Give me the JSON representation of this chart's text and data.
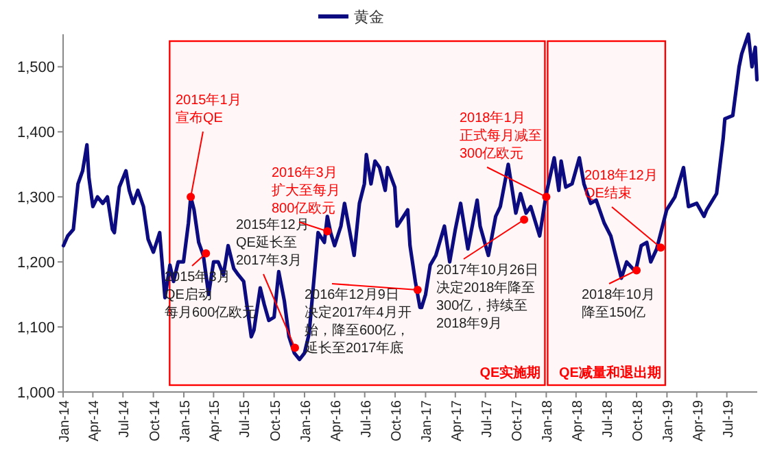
{
  "chart_data": {
    "type": "line",
    "legend": "top",
    "grid": false,
    "marker": "none",
    "line_style": "solid",
    "series": [
      {
        "name": "黄金",
        "color": "#0c0c80",
        "x": [
          "2014-01-02",
          "2014-01-15",
          "2014-02-01",
          "2014-02-15",
          "2014-03-01",
          "2014-03-14",
          "2014-03-20",
          "2014-04-01",
          "2014-04-15",
          "2014-05-01",
          "2014-05-15",
          "2014-05-30",
          "2014-06-05",
          "2014-06-20",
          "2014-07-10",
          "2014-07-20",
          "2014-08-01",
          "2014-08-15",
          "2014-09-01",
          "2014-09-15",
          "2014-10-01",
          "2014-10-20",
          "2014-11-05",
          "2014-11-20",
          "2014-12-01",
          "2014-12-15",
          "2014-12-31",
          "2015-01-15",
          "2015-01-22",
          "2015-02-01",
          "2015-02-15",
          "2015-03-01",
          "2015-03-17",
          "2015-04-01",
          "2015-04-15",
          "2015-05-01",
          "2015-05-15",
          "2015-06-01",
          "2015-06-15",
          "2015-07-01",
          "2015-07-24",
          "2015-08-01",
          "2015-08-20",
          "2015-09-01",
          "2015-09-15",
          "2015-10-01",
          "2015-10-15",
          "2015-11-01",
          "2015-11-15",
          "2015-12-01",
          "2015-12-17",
          "2016-01-01",
          "2016-01-15",
          "2016-02-11",
          "2016-03-01",
          "2016-03-10",
          "2016-03-20",
          "2016-04-01",
          "2016-04-20",
          "2016-05-01",
          "2016-05-30",
          "2016-06-15",
          "2016-06-30",
          "2016-07-06",
          "2016-07-20",
          "2016-08-01",
          "2016-08-15",
          "2016-09-01",
          "2016-09-08",
          "2016-09-30",
          "2016-10-07",
          "2016-10-20",
          "2016-11-08",
          "2016-11-15",
          "2016-12-01",
          "2016-12-15",
          "2016-12-20",
          "2017-01-01",
          "2017-01-15",
          "2017-02-01",
          "2017-02-27",
          "2017-03-15",
          "2017-04-01",
          "2017-04-17",
          "2017-05-09",
          "2017-06-06",
          "2017-06-15",
          "2017-07-10",
          "2017-08-01",
          "2017-08-15",
          "2017-09-08",
          "2017-10-01",
          "2017-10-15",
          "2017-11-01",
          "2017-11-15",
          "2017-12-12",
          "2018-01-01",
          "2018-01-25",
          "2018-02-08",
          "2018-02-15",
          "2018-03-01",
          "2018-03-20",
          "2018-04-11",
          "2018-04-25",
          "2018-05-15",
          "2018-06-01",
          "2018-06-25",
          "2018-07-15",
          "2018-08-16",
          "2018-09-01",
          "2018-09-28",
          "2018-10-15",
          "2018-11-01",
          "2018-11-13",
          "2018-12-01",
          "2018-12-31",
          "2019-01-25",
          "2019-02-20",
          "2019-03-07",
          "2019-04-01",
          "2019-04-23",
          "2019-05-01",
          "2019-05-31",
          "2019-06-20",
          "2019-06-25",
          "2019-07-19",
          "2019-08-07",
          "2019-08-15",
          "2019-09-04",
          "2019-09-15",
          "2019-09-25",
          "2019-09-30"
        ],
        "values": [
          1225,
          1240,
          1250,
          1320,
          1340,
          1380,
          1330,
          1285,
          1300,
          1290,
          1300,
          1250,
          1245,
          1315,
          1340,
          1310,
          1290,
          1310,
          1285,
          1235,
          1215,
          1245,
          1145,
          1195,
          1170,
          1200,
          1200,
          1260,
          1300,
          1280,
          1230,
          1210,
          1150,
          1200,
          1200,
          1180,
          1225,
          1190,
          1180,
          1170,
          1085,
          1095,
          1160,
          1135,
          1110,
          1115,
          1185,
          1140,
          1085,
          1060,
          1050,
          1060,
          1090,
          1245,
          1230,
          1270,
          1245,
          1225,
          1255,
          1290,
          1210,
          1290,
          1320,
          1365,
          1320,
          1355,
          1345,
          1310,
          1345,
          1315,
          1255,
          1265,
          1280,
          1225,
          1170,
          1130,
          1130,
          1150,
          1195,
          1210,
          1255,
          1200,
          1250,
          1290,
          1220,
          1295,
          1255,
          1210,
          1270,
          1285,
          1350,
          1275,
          1305,
          1275,
          1285,
          1240,
          1305,
          1360,
          1310,
          1355,
          1315,
          1320,
          1360,
          1320,
          1290,
          1295,
          1260,
          1240,
          1175,
          1200,
          1185,
          1225,
          1230,
          1200,
          1220,
          1280,
          1300,
          1345,
          1285,
          1290,
          1270,
          1280,
          1305,
          1390,
          1420,
          1425,
          1500,
          1520,
          1550,
          1500,
          1530,
          1480
        ]
      }
    ],
    "xlim": [
      "2014-01-01",
      "2019-10-01"
    ],
    "xticks": [
      {
        "value": "2014-01",
        "label": "Jan-14"
      },
      {
        "value": "2014-04",
        "label": "Apr-14"
      },
      {
        "value": "2014-07",
        "label": "Jul-14"
      },
      {
        "value": "2014-10",
        "label": "Oct-14"
      },
      {
        "value": "2015-01",
        "label": "Jan-15"
      },
      {
        "value": "2015-04",
        "label": "Apr-15"
      },
      {
        "value": "2015-07",
        "label": "Jul-15"
      },
      {
        "value": "2015-10",
        "label": "Oct-15"
      },
      {
        "value": "2016-01",
        "label": "Jan-16"
      },
      {
        "value": "2016-04",
        "label": "Apr-16"
      },
      {
        "value": "2016-07",
        "label": "Jul-16"
      },
      {
        "value": "2016-10",
        "label": "Oct-16"
      },
      {
        "value": "2017-01",
        "label": "Jan-17"
      },
      {
        "value": "2017-04",
        "label": "Apr-17"
      },
      {
        "value": "2017-07",
        "label": "Jul-17"
      },
      {
        "value": "2017-10",
        "label": "Oct-17"
      },
      {
        "value": "2018-01",
        "label": "Jan-18"
      },
      {
        "value": "2018-04",
        "label": "Apr-18"
      },
      {
        "value": "2018-07",
        "label": "Jul-18"
      },
      {
        "value": "2018-10",
        "label": "Oct-18"
      },
      {
        "value": "2019-01",
        "label": "Jan-19"
      },
      {
        "value": "2019-04",
        "label": "Apr-19"
      },
      {
        "value": "2019-07",
        "label": "Jul-19"
      }
    ],
    "ylim": [
      1000,
      1550
    ],
    "yticks": [
      {
        "value": 1000,
        "label": "1,000"
      },
      {
        "value": 1100,
        "label": "1,100"
      },
      {
        "value": 1200,
        "label": "1,200"
      },
      {
        "value": 1300,
        "label": "1,300"
      },
      {
        "value": 1400,
        "label": "1,400"
      },
      {
        "value": 1500,
        "label": "1,500"
      }
    ],
    "bands": [
      {
        "axis": "x",
        "from": "2014-11-15",
        "to": "2018-01-01",
        "label": "QE实施期",
        "color": "#ff0000"
      },
      {
        "axis": "x",
        "from": "2018-01-01",
        "to": "2018-12-31",
        "label": "QE减量和退出期",
        "color": "#ff0000"
      }
    ],
    "annotations": [
      {
        "text": "2015年1月宣布QE",
        "x": "2015-01-22",
        "y": 1300
      },
      {
        "text": "2015年3月QE启动每月600亿欧元",
        "x": "2015-03-09",
        "y": 1213
      },
      {
        "text": "2015年12月QE延长至2017年3月",
        "x": "2015-12-03",
        "y": 1068
      },
      {
        "text": "2016年3月扩大至每月800亿欧元",
        "x": "2016-03-10",
        "y": 1247
      },
      {
        "text": "2016年12月9日决定2017年4月开始，降至600亿，延长至2017年底",
        "x": "2016-12-08",
        "y": 1157
      },
      {
        "text": "2017年10月26日决定2018年降至300亿，持续至2018年9月",
        "x": "2017-10-26",
        "y": 1265
      },
      {
        "text": "2018年1月正式每月减至300亿欧元",
        "x": "2018-01-01",
        "y": 1300
      },
      {
        "text": "2018年12月QE结束",
        "x": "2018-12-13",
        "y": 1222
      },
      {
        "text": "2018年10月降至150亿",
        "x": "2018-10-01",
        "y": 1187
      }
    ]
  }
}
